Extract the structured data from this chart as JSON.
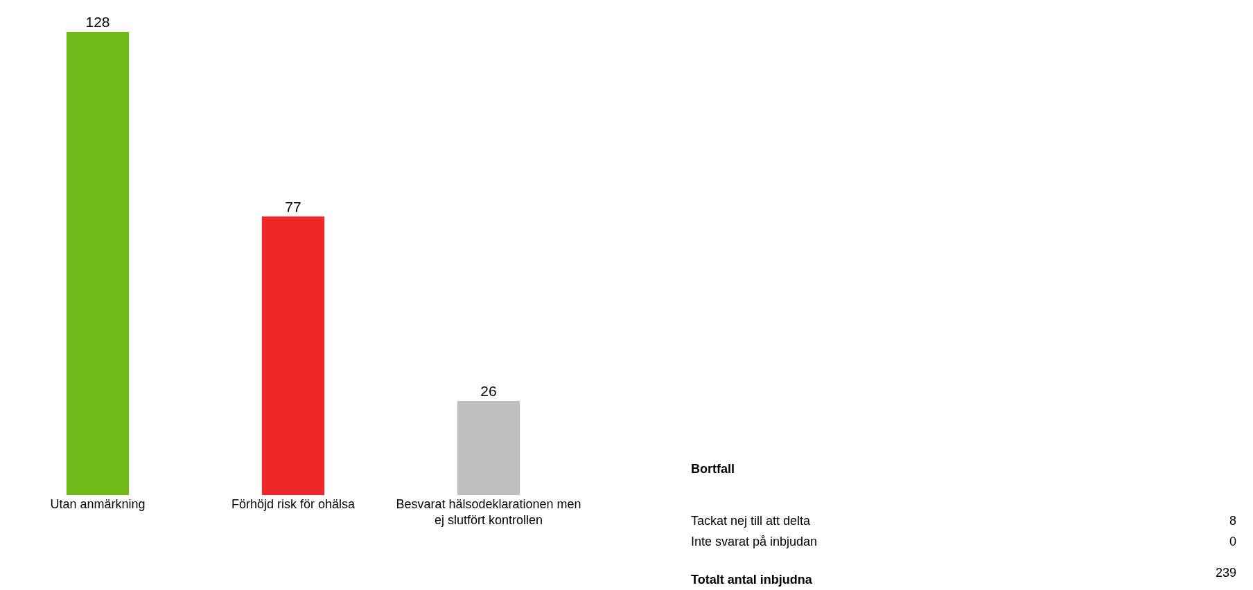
{
  "chart_data": [
    {
      "type": "bar",
      "categories": [
        "Utan anmärkning",
        "Förhöjd risk för ohälsa",
        "Besvarat hälsodeklarationen men ej slutfört kontrollen"
      ],
      "values": [
        128,
        77,
        26
      ],
      "colors": [
        "#70b919",
        "#ee2828",
        "#bfbfbf"
      ],
      "data_labels": true
    },
    {
      "type": "other",
      "title": "Bortfall",
      "annotations": [
        "Tackat nej till att delta",
        "8",
        "Inte svarat på inbjudan",
        "0",
        "Totalt antal inbjudna",
        "239"
      ]
    }
  ]
}
